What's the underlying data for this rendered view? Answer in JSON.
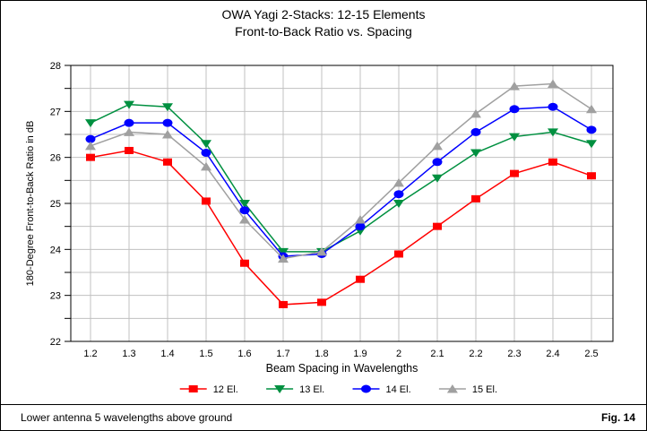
{
  "footer": {
    "note": "Lower antenna 5 wavelengths above ground",
    "figure_label": "Fig. 14"
  },
  "chart_data": {
    "type": "line",
    "title": "OWA Yagi 2-Stacks: 12-15 Elements",
    "subtitle": "Front-to-Back Ratio vs. Spacing",
    "xlabel": "Beam Spacing in Wavelengths",
    "ylabel": "180-Degree Front-to-Back Ratio in dB",
    "x": [
      1.2,
      1.3,
      1.4,
      1.5,
      1.6,
      1.7,
      1.8,
      1.9,
      2.0,
      2.1,
      2.2,
      2.3,
      2.4,
      2.5
    ],
    "x_tick_labels": [
      "1.2",
      "1.3",
      "1.4",
      "1.5",
      "1.6",
      "1.7",
      "1.8",
      "1.9",
      "2",
      "2.1",
      "2.2",
      "2.3",
      "2.4",
      "2.5"
    ],
    "ylim": [
      22,
      28
    ],
    "y_major_ticks": [
      22,
      23,
      24,
      25,
      26,
      27,
      28
    ],
    "y_minor_tick_step": 0.5,
    "grid": {
      "show": true,
      "color": "#c0c0c0",
      "x_step": 0.1,
      "y_step": 0.5
    },
    "frame_color": "#000000",
    "legend_position": "bottom",
    "series": [
      {
        "name": "12 El.",
        "color": "#ff0000",
        "marker": "square",
        "values": [
          26.0,
          26.15,
          25.9,
          25.05,
          23.7,
          22.8,
          22.85,
          23.35,
          23.9,
          24.5,
          25.1,
          25.65,
          25.9,
          25.6
        ]
      },
      {
        "name": "13 El.",
        "color": "#009040",
        "marker": "triangle-down",
        "values": [
          26.75,
          27.15,
          27.1,
          26.3,
          25.0,
          23.95,
          23.95,
          24.4,
          25.0,
          25.55,
          26.1,
          26.45,
          26.55,
          26.3
        ]
      },
      {
        "name": "14 El.",
        "color": "#0000ff",
        "marker": "circle",
        "values": [
          26.4,
          26.75,
          26.75,
          26.1,
          24.85,
          23.85,
          23.9,
          24.5,
          25.2,
          25.9,
          26.55,
          27.05,
          27.1,
          26.6
        ]
      },
      {
        "name": "15 El.",
        "color": "#a0a0a0",
        "marker": "triangle-up",
        "values": [
          26.25,
          26.55,
          26.5,
          25.8,
          24.65,
          23.8,
          23.95,
          24.65,
          25.45,
          26.25,
          26.95,
          27.55,
          27.6,
          27.05
        ]
      }
    ]
  }
}
